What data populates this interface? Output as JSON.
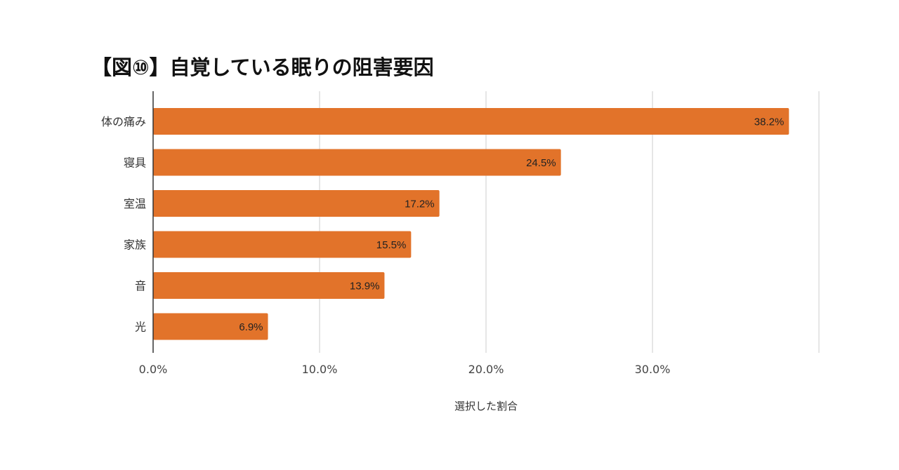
{
  "chart_data": {
    "type": "bar",
    "orientation": "horizontal",
    "title": "【図⑩】自覚している眠りの阻害要因",
    "xlabel": "選択した割合",
    "ylabel": "",
    "categories": [
      "体の痛み",
      "寝具",
      "室温",
      "家族",
      "音",
      "光"
    ],
    "values": [
      38.2,
      24.5,
      17.2,
      15.5,
      13.9,
      6.9
    ],
    "value_labels": [
      "38.2%",
      "24.5%",
      "17.2%",
      "15.5%",
      "13.9%",
      "6.9%"
    ],
    "xlim": [
      0,
      40
    ],
    "ticks": [
      0,
      10,
      20,
      30
    ],
    "tick_labels": [
      "0.0%",
      "10.0%",
      "20.0%",
      "30.0%"
    ],
    "grid": true,
    "colors": {
      "bar": "#e2732a",
      "grid": "#cccccc",
      "axis": "#333333"
    }
  }
}
